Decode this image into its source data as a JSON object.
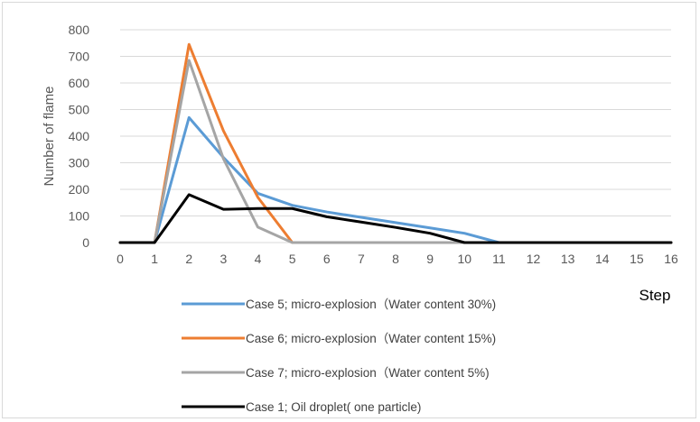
{
  "chart_data": {
    "type": "line",
    "title": "",
    "xlabel": "Step",
    "ylabel": "Number of flame",
    "x": [
      0,
      1,
      2,
      3,
      4,
      5,
      6,
      7,
      8,
      9,
      10,
      11,
      12,
      13,
      14,
      15,
      16
    ],
    "xlim": [
      0,
      16
    ],
    "ylim": [
      0,
      800
    ],
    "yticks": [
      0,
      100,
      200,
      300,
      400,
      500,
      600,
      700,
      800
    ],
    "grid": true,
    "legend_position": "bottom",
    "series": [
      {
        "name": "Case 5; micro-explosion（Water content 30%)",
        "color": "#5b9bd5",
        "values": [
          0,
          0,
          470,
          320,
          185,
          140,
          115,
          95,
          75,
          55,
          35,
          0,
          0,
          0,
          0,
          0,
          0
        ]
      },
      {
        "name": "Case 6; micro-explosion（Water content 15%)",
        "color": "#ed7d31",
        "values": [
          0,
          0,
          745,
          420,
          170,
          0,
          0,
          0,
          0,
          0,
          0,
          0,
          0,
          0,
          0,
          0,
          0
        ]
      },
      {
        "name": "Case 7; micro-explosion（Water content 5%)",
        "color": "#a5a5a5",
        "values": [
          0,
          0,
          685,
          315,
          58,
          0,
          0,
          0,
          0,
          0,
          0,
          0,
          0,
          0,
          0,
          0,
          0
        ]
      },
      {
        "name": "Case 1; Oil droplet( one particle)",
        "color": "#000000",
        "values": [
          0,
          0,
          180,
          125,
          128,
          128,
          97,
          77,
          57,
          35,
          0,
          0,
          0,
          0,
          0,
          0,
          0
        ]
      }
    ]
  }
}
